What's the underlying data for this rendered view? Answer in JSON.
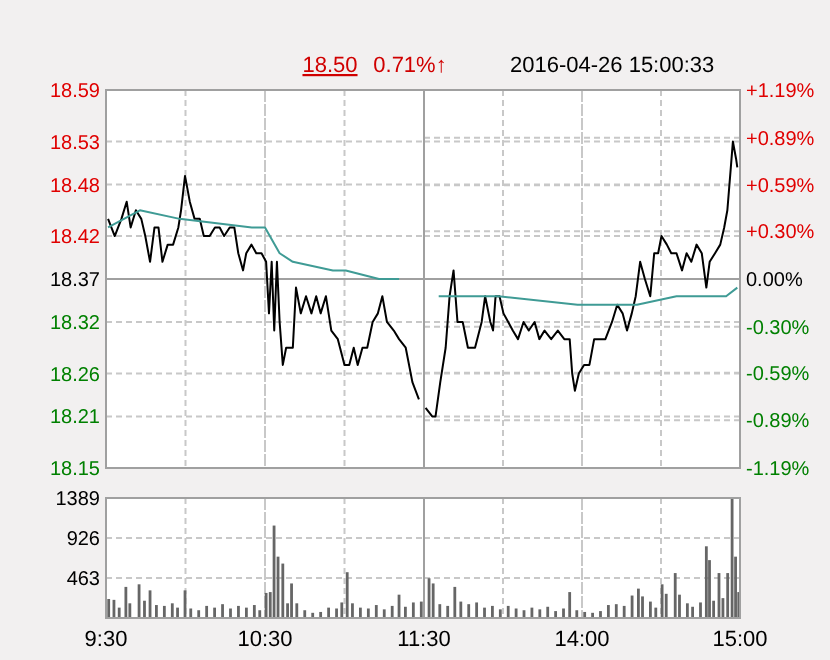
{
  "chart_data": [
    {
      "type": "line",
      "annotations": [
        "18.50",
        "0.71%↑",
        "2016-04-26 15:00:33"
      ],
      "xlim": [
        9.5,
        11.5
      ],
      "xticks": [
        9.5,
        10,
        10.5,
        11,
        11.5
      ],
      "ylim": [
        18.15,
        18.59
      ],
      "yticks": [
        18.15,
        18.21,
        18.26,
        18.32,
        18.37,
        18.42,
        18.48,
        18.53,
        18.59
      ],
      "grid": true,
      "tick_labels": "y",
      "ref_lines": [
        {
          "axis": "y",
          "value": 18.37,
          "color": "#a0a0a0"
        }
      ],
      "series": [
        {
          "color": "#000000",
          "x": [
            9.513,
            9.555,
            9.597,
            9.63,
            9.655,
            9.688,
            9.722,
            9.747,
            9.777,
            9.805,
            9.83,
            9.855,
            9.888,
            9.922,
            9.955,
            9.972,
            9.997,
            10.027,
            10.057,
            10.09,
            10.115,
            10.152,
            10.185,
            10.215,
            10.243,
            10.278,
            10.307,
            10.332,
            10.362,
            10.382,
            10.415,
            10.445,
            10.478,
            10.507,
            10.525,
            10.542,
            10.558,
            10.575,
            10.592,
            10.612,
            10.633,
            10.675,
            10.695,
            10.725,
            10.758,
            10.792,
            10.822,
            10.85,
            10.883,
            10.917,
            10.958,
            11,
            11.03,
            11.058,
            11.083,
            11.113,
            11.143,
            11.177,
            11.21,
            11.238,
            11.267,
            11.31,
            11.343,
            11.385,
            11.427,
            11.468
          ],
          "values": [
            18.44,
            18.42,
            18.44,
            18.46,
            18.43,
            18.45,
            18.44,
            18.42,
            18.39,
            18.43,
            18.43,
            18.39,
            18.41,
            18.41,
            18.43,
            18.45,
            18.49,
            18.46,
            18.44,
            18.44,
            18.42,
            18.42,
            18.43,
            18.43,
            18.42,
            18.43,
            18.43,
            18.4,
            18.38,
            18.4,
            18.41,
            18.4,
            18.4,
            18.39,
            18.33,
            18.39,
            18.31,
            18.39,
            18.32,
            18.27,
            18.29,
            18.29,
            18.36,
            18.33,
            18.35,
            18.33,
            18.35,
            18.33,
            18.35,
            18.31,
            18.3,
            18.27,
            18.27,
            18.29,
            18.27,
            18.29,
            18.29,
            18.32,
            18.33,
            18.35,
            18.32,
            18.31,
            18.3,
            18.29,
            18.25,
            18.23
          ]
        },
        {
          "color": "#3f9b95",
          "x": [
            9.513,
            9.713,
            9.963,
            10.417,
            10.5,
            10.592,
            10.675,
            10.927,
            11.008,
            11.217,
            11.343
          ],
          "values": [
            18.43,
            18.45,
            18.44,
            18.43,
            18.43,
            18.4,
            18.39,
            18.38,
            18.38,
            18.37,
            18.37
          ]
        }
      ]
    },
    {
      "type": "line",
      "xlim": [
        13,
        15
      ],
      "xticks": [
        13,
        13.5,
        14,
        14.5,
        15
      ],
      "ylim": [
        18.15,
        18.59
      ],
      "yticks": [
        18.15,
        18.21,
        18.26,
        18.32,
        18.37,
        18.42,
        18.48,
        18.53,
        18.59
      ],
      "y2lim": [
        -1.19,
        1.19
      ],
      "y2ticks": [
        {
          "value": -1.19,
          "label": "-1.19%"
        },
        {
          "value": -0.89,
          "label": "-0.89%"
        },
        {
          "value": -0.59,
          "label": "-0.59%"
        },
        {
          "value": -0.3,
          "label": "-0.30%"
        },
        {
          "value": 0,
          "label": "0.00%"
        },
        {
          "value": 0.3,
          "label": "+0.30%"
        },
        {
          "value": 0.59,
          "label": "+0.59%"
        },
        {
          "value": 0.89,
          "label": "+0.89%"
        },
        {
          "value": 1.19,
          "label": "+1.19%"
        }
      ],
      "grid": true,
      "tick_labels": false,
      "ref_lines": [
        {
          "axis": "y",
          "value": 18.37,
          "color": "#a0a0a0"
        }
      ],
      "series": [
        {
          "color": "#000000",
          "x": [
            13.01,
            13.052,
            13.073,
            13.103,
            13.137,
            13.162,
            13.187,
            13.212,
            13.245,
            13.278,
            13.323,
            13.365,
            13.387,
            13.42,
            13.437,
            13.453,
            13.478,
            13.503,
            13.533,
            13.562,
            13.595,
            13.63,
            13.663,
            13.7,
            13.73,
            13.763,
            13.805,
            13.847,
            13.888,
            13.922,
            13.938,
            13.955,
            13.98,
            14.013,
            14.047,
            14.077,
            14.105,
            14.148,
            14.19,
            14.223,
            14.257,
            14.285,
            14.315,
            14.34,
            14.368,
            14.398,
            14.432,
            14.457,
            14.482,
            14.503,
            14.537,
            14.565,
            14.598,
            14.633,
            14.662,
            14.692,
            14.725,
            14.758,
            14.787,
            14.808,
            14.842,
            14.875,
            14.9,
            14.92,
            14.942,
            14.955,
            14.975,
            14.983
          ],
          "values": [
            18.22,
            18.21,
            18.21,
            18.25,
            18.29,
            18.35,
            18.38,
            18.32,
            18.32,
            18.29,
            18.29,
            18.32,
            18.35,
            18.32,
            18.31,
            18.35,
            18.35,
            18.33,
            18.32,
            18.31,
            18.3,
            18.32,
            18.31,
            18.32,
            18.3,
            18.31,
            18.3,
            18.31,
            18.3,
            18.3,
            18.26,
            18.24,
            18.26,
            18.27,
            18.27,
            18.3,
            18.3,
            18.3,
            18.32,
            18.34,
            18.33,
            18.31,
            18.33,
            18.35,
            18.39,
            18.37,
            18.35,
            18.4,
            18.4,
            18.42,
            18.41,
            18.4,
            18.4,
            18.38,
            18.4,
            18.39,
            18.41,
            18.4,
            18.36,
            18.39,
            18.4,
            18.41,
            18.43,
            18.45,
            18.5,
            18.53,
            18.51,
            18.5
          ]
        },
        {
          "color": "#3f9b95",
          "x": [
            13.093,
            13.47,
            13.972,
            14.348,
            14.598,
            14.912,
            14.983
          ],
          "values": [
            18.35,
            18.35,
            18.34,
            18.34,
            18.35,
            18.35,
            18.36
          ]
        }
      ]
    },
    {
      "type": "bar",
      "color": "#666666",
      "xlim": [
        9.5,
        11.5
      ],
      "xticks": [
        {
          "value": 9.5,
          "label": "9:30"
        },
        {
          "value": 10,
          "label": null
        },
        {
          "value": 10.5,
          "label": "10:30"
        },
        {
          "value": 11,
          "label": null
        },
        {
          "value": 11.5,
          "label": "11:30"
        }
      ],
      "ylim": [
        0,
        1389
      ],
      "yticks": [
        463,
        926,
        1389
      ],
      "grid": true,
      "x": [
        9.517,
        9.55,
        9.583,
        9.625,
        9.65,
        9.708,
        9.742,
        9.777,
        9.817,
        9.867,
        9.917,
        9.95,
        9.997,
        10.033,
        10.083,
        10.133,
        10.183,
        10.233,
        10.283,
        10.333,
        10.383,
        10.433,
        10.467,
        10.507,
        10.533,
        10.557,
        10.582,
        10.612,
        10.642,
        10.667,
        10.7,
        10.75,
        10.8,
        10.85,
        10.9,
        10.95,
        10.983,
        11.017,
        11.05,
        11.1,
        11.15,
        11.2,
        11.25,
        11.3,
        11.343,
        11.383,
        11.433,
        11.483
      ],
      "values": [
        220,
        210,
        120,
        360,
        170,
        390,
        200,
        320,
        150,
        140,
        170,
        120,
        320,
        110,
        90,
        140,
        120,
        160,
        110,
        140,
        120,
        150,
        90,
        290,
        300,
        1070,
        710,
        630,
        170,
        400,
        170,
        90,
        60,
        70,
        120,
        110,
        180,
        530,
        170,
        120,
        110,
        150,
        100,
        140,
        270,
        130,
        180,
        190
      ]
    },
    {
      "type": "bar",
      "color": "#666666",
      "xlim": [
        13,
        15
      ],
      "tick_labels": "x",
      "xticks": [
        {
          "value": 13,
          "label": null
        },
        {
          "value": 13.5,
          "label": null
        },
        {
          "value": 14,
          "label": "14:00"
        },
        {
          "value": 14.5,
          "label": null
        },
        {
          "value": 15,
          "label": "15:00"
        }
      ],
      "ylim": [
        0,
        1389
      ],
      "yticks": [
        463,
        926,
        1389
      ],
      "grid": true,
      "x": [
        13.032,
        13.058,
        13.1,
        13.15,
        13.195,
        13.233,
        13.283,
        13.333,
        13.383,
        13.433,
        13.483,
        13.533,
        13.583,
        13.633,
        13.683,
        13.733,
        13.783,
        13.833,
        13.883,
        13.922,
        13.967,
        14.017,
        14.067,
        14.117,
        14.167,
        14.217,
        14.267,
        14.317,
        14.357,
        14.383,
        14.433,
        14.467,
        14.507,
        14.533,
        14.59,
        14.617,
        14.667,
        14.7,
        14.75,
        14.787,
        14.807,
        14.833,
        14.867,
        14.892,
        14.922,
        14.95,
        14.972,
        14.992
      ],
      "values": [
        460,
        400,
        160,
        140,
        360,
        190,
        160,
        180,
        120,
        140,
        100,
        140,
        110,
        90,
        120,
        100,
        130,
        80,
        110,
        300,
        90,
        70,
        60,
        80,
        150,
        160,
        140,
        260,
        340,
        250,
        190,
        120,
        390,
        280,
        520,
        270,
        170,
        130,
        180,
        830,
        670,
        200,
        520,
        230,
        520,
        1380,
        710,
        300
      ]
    }
  ]
}
